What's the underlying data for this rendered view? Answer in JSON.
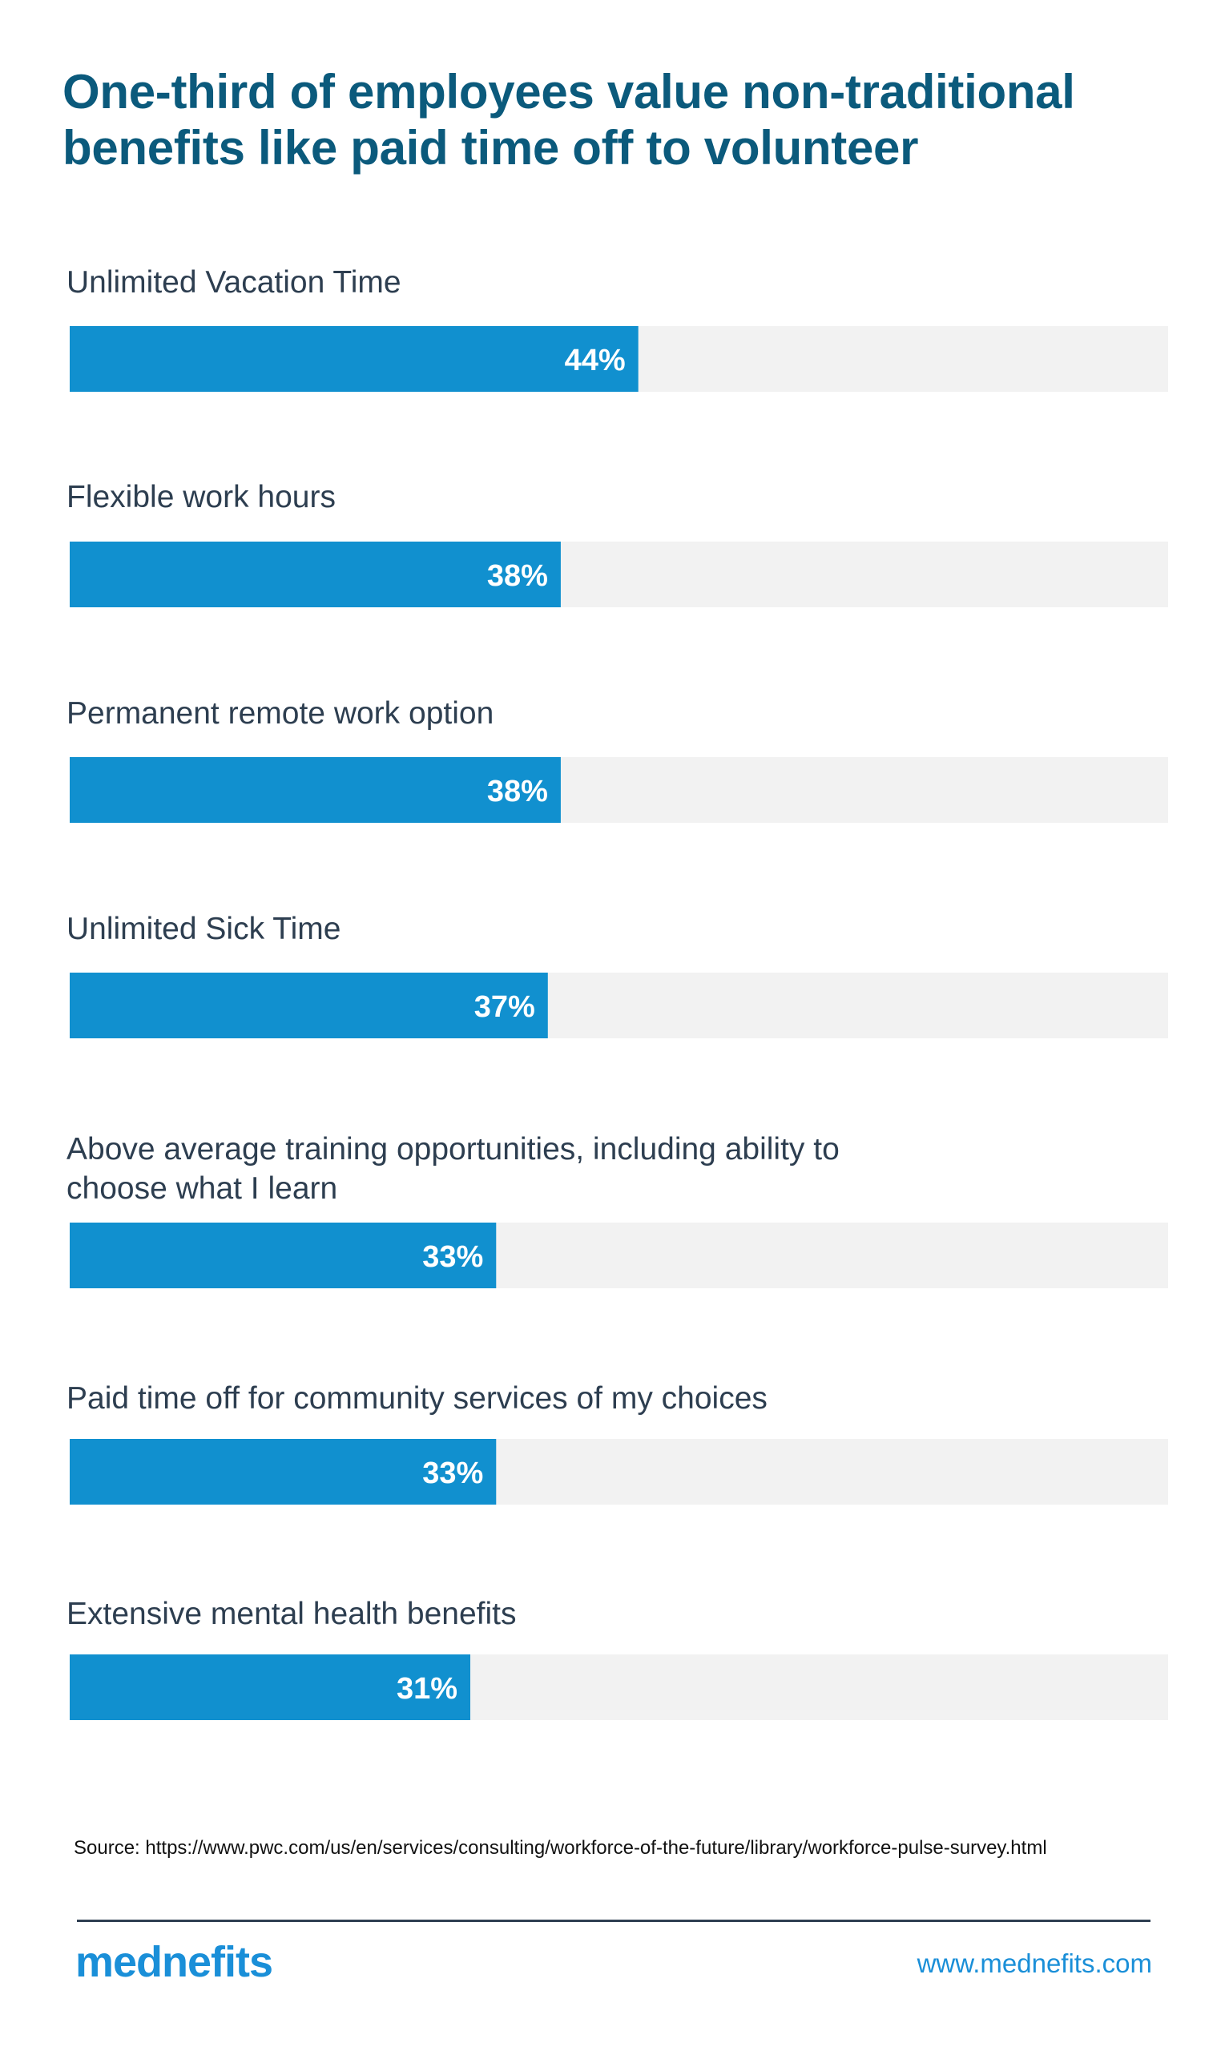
{
  "colors": {
    "title": "#0b5a7c",
    "bar": "#1190cf",
    "track": "#f2f2f2",
    "label": "#2d3e50",
    "brand": "#1a8fd8"
  },
  "title_lines": [
    "One-third of employees value non-traditional",
    "benefits like paid time off to volunteer"
  ],
  "chart_data": {
    "type": "bar",
    "orientation": "horizontal",
    "title": "One-third of employees value non-traditional benefits like paid time off to volunteer",
    "categories": [
      [
        "Unlimited Vacation Time"
      ],
      [
        "Flexible work hours"
      ],
      [
        "Permanent remote work option"
      ],
      [
        "Unlimited Sick Time"
      ],
      [
        "Above average training opportunities, including ability to",
        "choose what I learn"
      ],
      [
        "Paid time off for community services of my choices"
      ],
      [
        "Extensive mental health benefits"
      ]
    ],
    "values": [
      44,
      38,
      38,
      37,
      33,
      33,
      31
    ],
    "value_labels": [
      "44%",
      "38%",
      "38%",
      "37%",
      "33%",
      "33%",
      "31%"
    ],
    "value_unit": "%",
    "xlim": [
      0,
      85
    ],
    "grid": false,
    "legend": "none"
  },
  "footer": {
    "source": "Source: https://www.pwc.com/us/en/services/consulting/workforce-of-the-future/library/workforce-pulse-survey.html",
    "logo_text": "mednefits",
    "website": "www.mednefits.com"
  }
}
